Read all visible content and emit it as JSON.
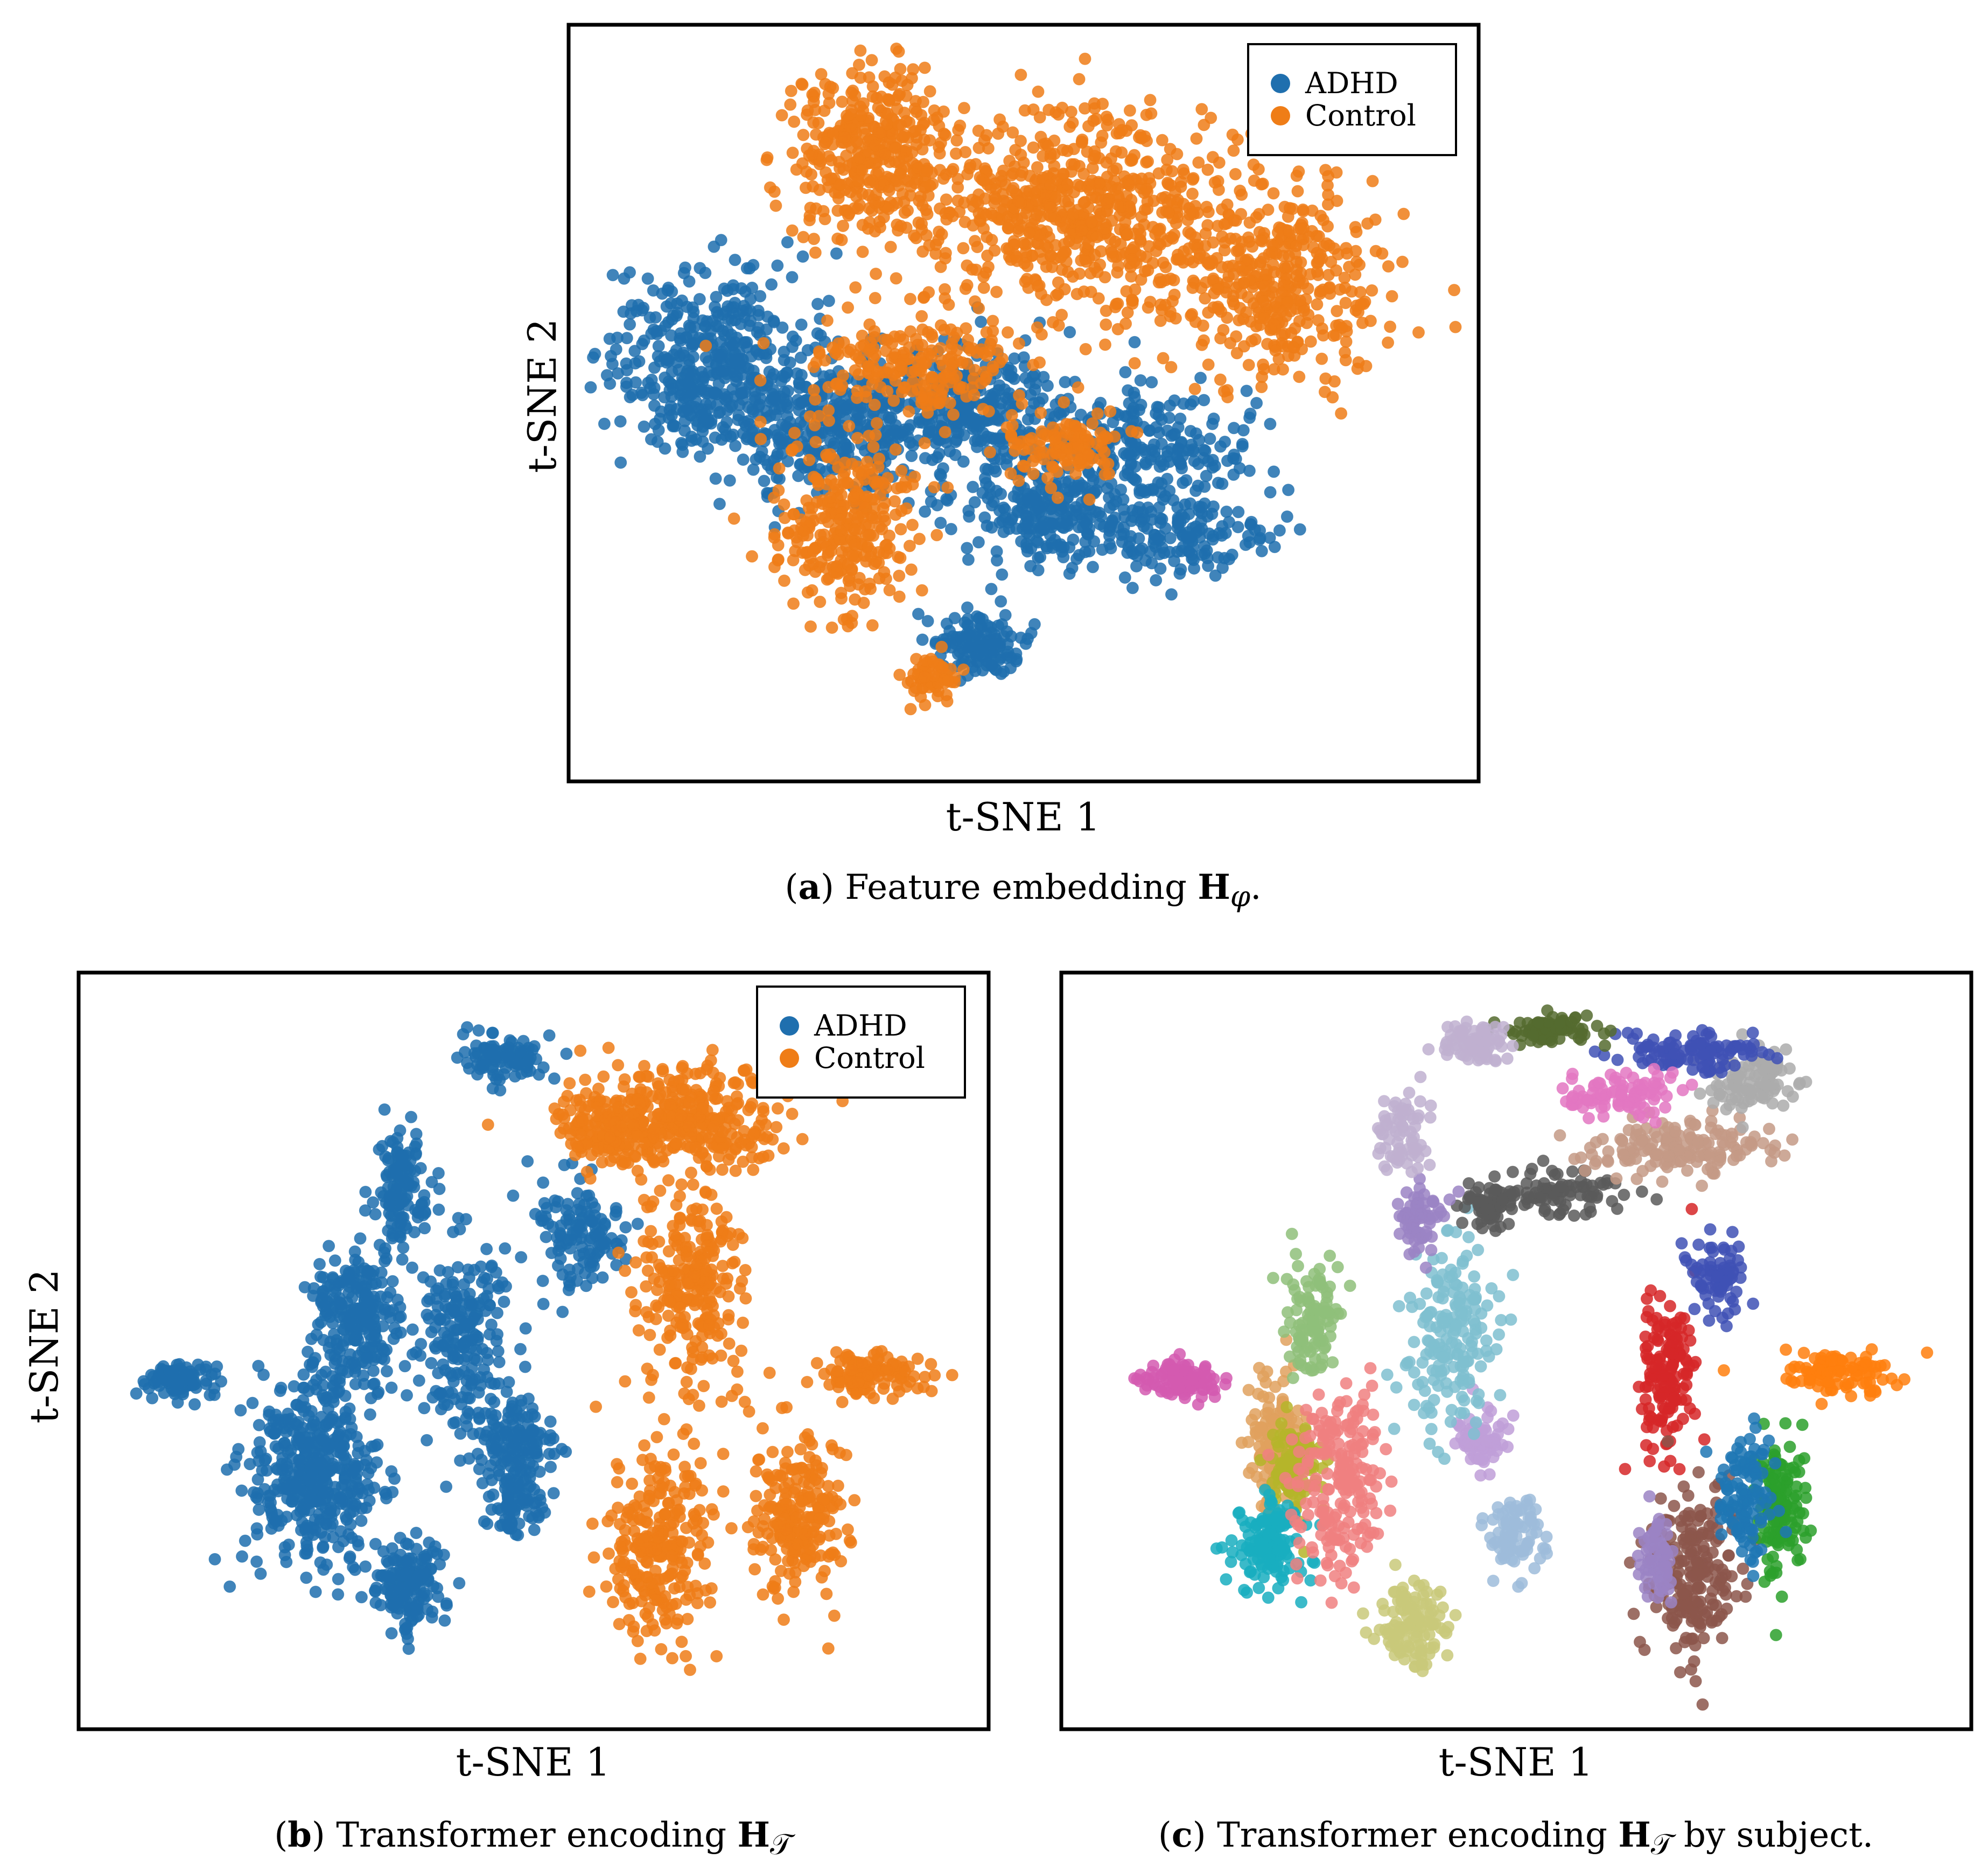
{
  "panels": {
    "a": {
      "xlabel": "t-SNE 1",
      "ylabel": "t-SNE 2",
      "caption_letter": "a",
      "caption_text": " Feature embedding ",
      "caption_math_symbol": "H",
      "caption_math_sub": "φ",
      "caption_end": ".",
      "legend": [
        "ADHD",
        "Control"
      ]
    },
    "b": {
      "xlabel": "t-SNE 1",
      "ylabel": "t-SNE 2",
      "caption_letter": "b",
      "caption_text": " Transformer encoding ",
      "caption_math_symbol": "H",
      "caption_math_sub": "𝒯",
      "caption_end": "",
      "legend": [
        "ADHD",
        "Control"
      ]
    },
    "c": {
      "xlabel": "t-SNE 1",
      "caption_letter": "c",
      "caption_text": " Transformer encoding ",
      "caption_math_symbol": "H",
      "caption_math_sub": "𝒯",
      "caption_end": " by subject."
    }
  },
  "colors": {
    "adhd": "#1f6fae",
    "control": "#ef7d17",
    "subjects": [
      "#d45ab0",
      "#e0a15e",
      "#b5b52a",
      "#19aec0",
      "#f08080",
      "#8fbf7a",
      "#9ebcda",
      "#9b84c4",
      "#7fbfd0",
      "#5a5a5a",
      "#8c564b",
      "#c9c97a",
      "#d62728",
      "#3f51b5",
      "#2ca02c",
      "#c0b0d0",
      "#ababab",
      "#556b2f",
      "#e377c2",
      "#ff7f0e",
      "#1f77b4",
      "#bf9fd8"
    ]
  },
  "chart_data": [
    {
      "id": "a",
      "type": "scatter",
      "title": "",
      "xlabel": "t-SNE 1",
      "ylabel": "t-SNE 2",
      "legend_position": "top-right",
      "grid": false,
      "xlim": [
        0,
        100
      ],
      "ylim": [
        0,
        100
      ],
      "series": [
        {
          "name": "ADHD",
          "color": "#1f6fae",
          "clusters": [
            {
              "cx": 14,
              "cy": 56,
              "rx": 11,
              "ry": 12,
              "n": 420
            },
            {
              "cx": 28,
              "cy": 47,
              "rx": 13,
              "ry": 10,
              "n": 380
            },
            {
              "cx": 44,
              "cy": 50,
              "rx": 9,
              "ry": 8,
              "n": 260
            },
            {
              "cx": 53,
              "cy": 35,
              "rx": 9,
              "ry": 7,
              "n": 240
            },
            {
              "cx": 45,
              "cy": 17,
              "rx": 5,
              "ry": 4,
              "n": 140
            },
            {
              "cx": 64,
              "cy": 44,
              "rx": 14,
              "ry": 8,
              "n": 240
            },
            {
              "cx": 68,
              "cy": 32,
              "rx": 9,
              "ry": 6,
              "n": 150
            }
          ]
        },
        {
          "name": "Control",
          "color": "#ef7d17",
          "clusters": [
            {
              "cx": 33,
              "cy": 84,
              "rx": 9,
              "ry": 11,
              "n": 380
            },
            {
              "cx": 56,
              "cy": 76,
              "rx": 20,
              "ry": 14,
              "n": 720
            },
            {
              "cx": 78,
              "cy": 66,
              "rx": 12,
              "ry": 12,
              "n": 360
            },
            {
              "cx": 30,
              "cy": 34,
              "rx": 8,
              "ry": 12,
              "n": 300
            },
            {
              "cx": 38,
              "cy": 55,
              "rx": 13,
              "ry": 6,
              "n": 200
            },
            {
              "cx": 40,
              "cy": 13,
              "rx": 3,
              "ry": 3,
              "n": 60
            },
            {
              "cx": 55,
              "cy": 44,
              "rx": 6,
              "ry": 5,
              "n": 120
            }
          ]
        }
      ]
    },
    {
      "id": "b",
      "type": "scatter",
      "title": "",
      "xlabel": "t-SNE 1",
      "ylabel": "t-SNE 2",
      "legend_position": "top-right",
      "grid": false,
      "xlim": [
        0,
        100
      ],
      "ylim": [
        0,
        100
      ],
      "series": [
        {
          "name": "ADHD",
          "color": "#1f6fae",
          "clusters": [
            {
              "cx": 10,
              "cy": 46,
              "rx": 4,
              "ry": 2.5,
              "n": 100
            },
            {
              "cx": 25,
              "cy": 34,
              "rx": 7,
              "ry": 12,
              "n": 450
            },
            {
              "cx": 30,
              "cy": 54,
              "rx": 5,
              "ry": 10,
              "n": 250
            },
            {
              "cx": 35,
              "cy": 72,
              "rx": 3,
              "ry": 8,
              "n": 140
            },
            {
              "cx": 36,
              "cy": 18,
              "rx": 4,
              "ry": 6,
              "n": 170
            },
            {
              "cx": 42,
              "cy": 52,
              "rx": 5,
              "ry": 14,
              "n": 220
            },
            {
              "cx": 48,
              "cy": 38,
              "rx": 4,
              "ry": 5,
              "n": 120
            },
            {
              "cx": 47,
              "cy": 90,
              "rx": 5,
              "ry": 3,
              "n": 100
            },
            {
              "cx": 48,
              "cy": 30,
              "rx": 3,
              "ry": 5,
              "n": 90
            },
            {
              "cx": 55,
              "cy": 66,
              "rx": 5,
              "ry": 8,
              "n": 130
            }
          ]
        },
        {
          "name": "Control",
          "color": "#ef7d17",
          "clusters": [
            {
              "cx": 66,
              "cy": 82,
              "rx": 12,
              "ry": 7,
              "n": 380
            },
            {
              "cx": 68,
              "cy": 60,
              "rx": 6,
              "ry": 14,
              "n": 260
            },
            {
              "cx": 64,
              "cy": 23,
              "rx": 6,
              "ry": 13,
              "n": 260
            },
            {
              "cx": 80,
              "cy": 28,
              "rx": 5,
              "ry": 11,
              "n": 220
            },
            {
              "cx": 88,
              "cy": 47,
              "rx": 7,
              "ry": 3,
              "n": 120
            },
            {
              "cx": 58,
              "cy": 80,
              "rx": 4,
              "ry": 4,
              "n": 80
            }
          ]
        }
      ]
    },
    {
      "id": "c",
      "type": "scatter",
      "title": "",
      "xlabel": "t-SNE 1",
      "ylabel": "",
      "grid": false,
      "xlim": [
        0,
        100
      ],
      "ylim": [
        0,
        100
      ],
      "series_description": "colored by subject",
      "clusters": [
        {
          "cx": 12,
          "cy": 46,
          "rx": 4,
          "ry": 2.5,
          "n": 110,
          "color": "#d45ab0"
        },
        {
          "cx": 23,
          "cy": 38,
          "rx": 3,
          "ry": 9,
          "n": 140,
          "color": "#e0a15e"
        },
        {
          "cx": 25,
          "cy": 34,
          "rx": 3,
          "ry": 6,
          "n": 110,
          "color": "#b5b52a"
        },
        {
          "cx": 22,
          "cy": 24,
          "rx": 4,
          "ry": 6,
          "n": 140,
          "color": "#19aec0"
        },
        {
          "cx": 30,
          "cy": 32,
          "rx": 5,
          "ry": 13,
          "n": 200,
          "color": "#f08080"
        },
        {
          "cx": 27,
          "cy": 55,
          "rx": 3,
          "ry": 8,
          "n": 110,
          "color": "#8fbf7a"
        },
        {
          "cx": 50,
          "cy": 25,
          "rx": 3,
          "ry": 5,
          "n": 90,
          "color": "#9ebcda"
        },
        {
          "cx": 46,
          "cy": 38,
          "rx": 3,
          "ry": 4,
          "n": 80,
          "color": "#bf9fd8"
        },
        {
          "cx": 43,
          "cy": 52,
          "rx": 5,
          "ry": 13,
          "n": 180,
          "color": "#7fbfd0"
        },
        {
          "cx": 47,
          "cy": 70,
          "rx": 3,
          "ry": 3,
          "n": 70,
          "color": "#5a5a5a"
        },
        {
          "cx": 55,
          "cy": 72,
          "rx": 8,
          "ry": 3,
          "n": 90,
          "color": "#5a5a5a"
        },
        {
          "cx": 39,
          "cy": 68,
          "rx": 3,
          "ry": 6,
          "n": 70,
          "color": "#9b84c4"
        },
        {
          "cx": 38,
          "cy": 13,
          "rx": 4,
          "ry": 6,
          "n": 120,
          "color": "#c9c97a"
        },
        {
          "cx": 67,
          "cy": 47,
          "rx": 3,
          "ry": 12,
          "n": 150,
          "color": "#d62728"
        },
        {
          "cx": 70,
          "cy": 20,
          "rx": 5,
          "ry": 12,
          "n": 200,
          "color": "#8c564b"
        },
        {
          "cx": 66,
          "cy": 22,
          "rx": 2,
          "ry": 6,
          "n": 70,
          "color": "#9b84c4"
        },
        {
          "cx": 73,
          "cy": 60,
          "rx": 3,
          "ry": 5,
          "n": 80,
          "color": "#3f51b5"
        },
        {
          "cx": 68,
          "cy": 78,
          "rx": 11,
          "ry": 4,
          "n": 160,
          "color": "#c49a86"
        },
        {
          "cx": 77,
          "cy": 87,
          "rx": 5,
          "ry": 4,
          "n": 100,
          "color": "#ababab"
        },
        {
          "cx": 69,
          "cy": 91,
          "rx": 8,
          "ry": 3,
          "n": 110,
          "color": "#3f51b5"
        },
        {
          "cx": 54,
          "cy": 94,
          "rx": 5,
          "ry": 2,
          "n": 80,
          "color": "#556b2f"
        },
        {
          "cx": 45,
          "cy": 92,
          "rx": 4,
          "ry": 3,
          "n": 80,
          "color": "#c0b0d0"
        },
        {
          "cx": 37,
          "cy": 80,
          "rx": 3,
          "ry": 6,
          "n": 70,
          "color": "#c0b0d0"
        },
        {
          "cx": 80,
          "cy": 29,
          "rx": 3,
          "ry": 10,
          "n": 130,
          "color": "#2ca02c"
        },
        {
          "cx": 76,
          "cy": 30,
          "rx": 3,
          "ry": 9,
          "n": 110,
          "color": "#1f77b4"
        },
        {
          "cx": 87,
          "cy": 47,
          "rx": 6,
          "ry": 3,
          "n": 100,
          "color": "#ff7f0e"
        },
        {
          "cx": 62,
          "cy": 85,
          "rx": 7,
          "ry": 3,
          "n": 90,
          "color": "#e377c2"
        }
      ]
    }
  ]
}
